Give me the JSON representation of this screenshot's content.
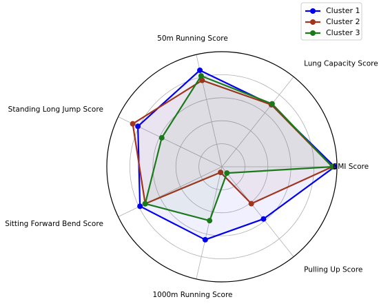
{
  "chart_data": {
    "type": "radar",
    "axes": [
      "BMI Score",
      "Lung Capacity Score",
      "50m Running Score",
      "Standing Long Jump Score",
      "Sitting Forward Bend Score",
      "1000m Running Score",
      "Pulling Up Score"
    ],
    "rmax": 1.0,
    "rings": [
      0.2,
      0.4,
      0.6,
      0.8,
      1.0
    ],
    "grid": true,
    "legend_position": "top-right",
    "series": [
      {
        "name": "Cluster 1",
        "color": "#0000ee",
        "values": [
          0.98,
          0.69,
          0.86,
          0.81,
          0.79,
          0.65,
          0.58
        ]
      },
      {
        "name": "Cluster 2",
        "color": "#a0341c",
        "values": [
          0.96,
          0.69,
          0.77,
          0.86,
          0.74,
          0.05,
          0.41
        ]
      },
      {
        "name": "Cluster 3",
        "color": "#1a7a1a",
        "values": [
          0.96,
          0.7,
          0.81,
          0.58,
          0.74,
          0.48,
          0.07
        ]
      }
    ]
  }
}
